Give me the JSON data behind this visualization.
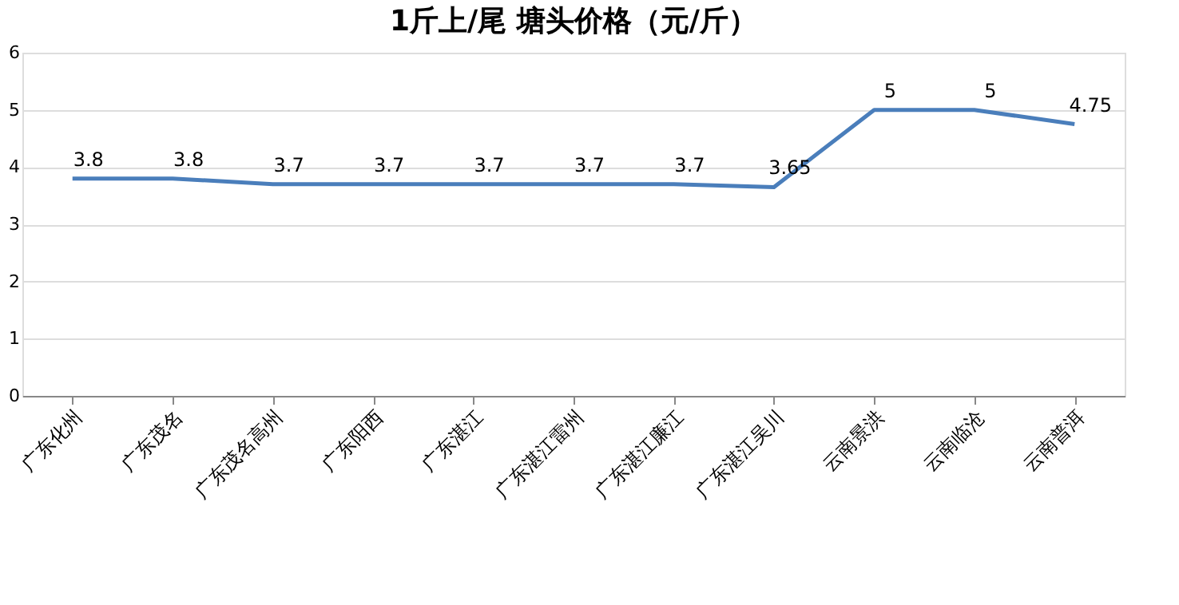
{
  "chart_data": {
    "type": "line",
    "title": "1斤上/尾  塘头价格（元/斤）",
    "categories": [
      "广东化州",
      "广东茂名",
      "广东茂名高州",
      "广东阳西",
      "广东湛江",
      "广东湛江雷州",
      "广东湛江廉江",
      "广东湛江吴川",
      "云南景洪",
      "云南临沧",
      "云南普洱"
    ],
    "series": [
      {
        "color": "#4a7ebb",
        "values": [
          3.8,
          3.8,
          3.7,
          3.7,
          3.7,
          3.7,
          3.7,
          3.65,
          5,
          5,
          4.75
        ]
      }
    ],
    "ylim": [
      0,
      6
    ],
    "yticks": [
      0,
      1,
      2,
      3,
      4,
      5,
      6
    ],
    "grid": "y",
    "data_labels": true,
    "marker": "none",
    "line_style": "solid",
    "legend": false
  }
}
